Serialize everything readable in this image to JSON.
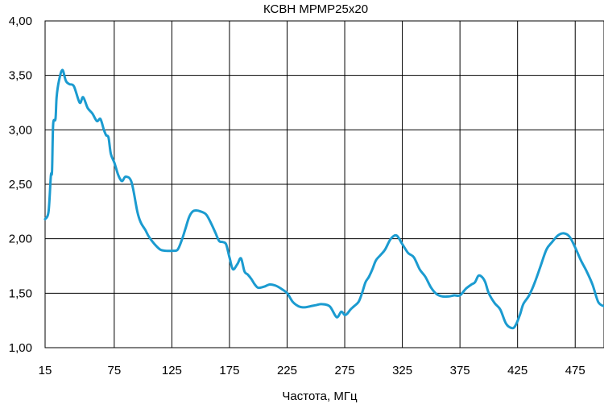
{
  "chart_data": {
    "type": "line",
    "title": "КСВН МРМР25х20",
    "xlabel": "Частота, МГц",
    "ylabel": "",
    "xlim": [
      15,
      500
    ],
    "ylim": [
      1.0,
      4.0
    ],
    "x_ticks": [
      15,
      75,
      125,
      175,
      225,
      275,
      325,
      375,
      425,
      475
    ],
    "x_tick_labels": [
      "15",
      "75",
      "125",
      "175",
      "225",
      "275",
      "325",
      "375",
      "425",
      "475"
    ],
    "y_ticks": [
      1.0,
      1.5,
      2.0,
      2.5,
      3.0,
      3.5,
      4.0
    ],
    "y_tick_labels": [
      "1,00",
      "1,50",
      "2,00",
      "2,50",
      "3,00",
      "3,50",
      "4,00"
    ],
    "grid": true,
    "line_color": "#1b9bd0",
    "series": [
      {
        "x": [
          15,
          18,
          20,
          21,
          22,
          24,
          25,
          27,
          30,
          33,
          36,
          40,
          45,
          48,
          52,
          56,
          60,
          63,
          66,
          68,
          70,
          72,
          75,
          78,
          80,
          82,
          85,
          90,
          95,
          98,
          102,
          105,
          110,
          115,
          120,
          125,
          130,
          134,
          137,
          140,
          143,
          146,
          150,
          155,
          160,
          163,
          166,
          169,
          172,
          175,
          178,
          182,
          185,
          188,
          191,
          194,
          197,
          200,
          205,
          210,
          215,
          220,
          225,
          230,
          235,
          240,
          245,
          250,
          255,
          262,
          268,
          272,
          275,
          277,
          280,
          283,
          287,
          290,
          293,
          296,
          299,
          302,
          306,
          310,
          315,
          320,
          325,
          330,
          335,
          340,
          345,
          350,
          355,
          360,
          365,
          370,
          375,
          380,
          385,
          388,
          391,
          394,
          397,
          400,
          405,
          410,
          415,
          420,
          423,
          427,
          430,
          435,
          440,
          445,
          450,
          455,
          460,
          465,
          470,
          475,
          480,
          485,
          490,
          495,
          500
        ],
        "y": [
          2.18,
          2.25,
          2.58,
          2.62,
          3.05,
          3.1,
          3.3,
          3.45,
          3.55,
          3.45,
          3.42,
          3.4,
          3.25,
          3.3,
          3.2,
          3.15,
          3.08,
          3.1,
          3.0,
          2.95,
          2.93,
          2.78,
          2.7,
          2.6,
          2.55,
          2.53,
          2.57,
          2.52,
          2.25,
          2.15,
          2.08,
          2.02,
          1.95,
          1.9,
          1.89,
          1.89,
          1.9,
          2.0,
          2.1,
          2.2,
          2.25,
          2.26,
          2.25,
          2.22,
          2.12,
          2.05,
          1.98,
          1.97,
          1.95,
          1.83,
          1.72,
          1.77,
          1.82,
          1.7,
          1.67,
          1.63,
          1.58,
          1.55,
          1.56,
          1.58,
          1.57,
          1.54,
          1.5,
          1.42,
          1.38,
          1.37,
          1.38,
          1.39,
          1.4,
          1.38,
          1.28,
          1.33,
          1.3,
          1.31,
          1.35,
          1.38,
          1.42,
          1.5,
          1.6,
          1.65,
          1.72,
          1.8,
          1.85,
          1.9,
          2.0,
          2.03,
          1.95,
          1.87,
          1.83,
          1.72,
          1.65,
          1.55,
          1.49,
          1.47,
          1.47,
          1.48,
          1.48,
          1.54,
          1.58,
          1.6,
          1.66,
          1.65,
          1.6,
          1.5,
          1.41,
          1.35,
          1.22,
          1.18,
          1.2,
          1.3,
          1.4,
          1.48,
          1.6,
          1.75,
          1.9,
          1.97,
          2.03,
          2.05,
          2.02,
          1.92,
          1.8,
          1.7,
          1.58,
          1.42,
          1.38
        ]
      }
    ]
  }
}
